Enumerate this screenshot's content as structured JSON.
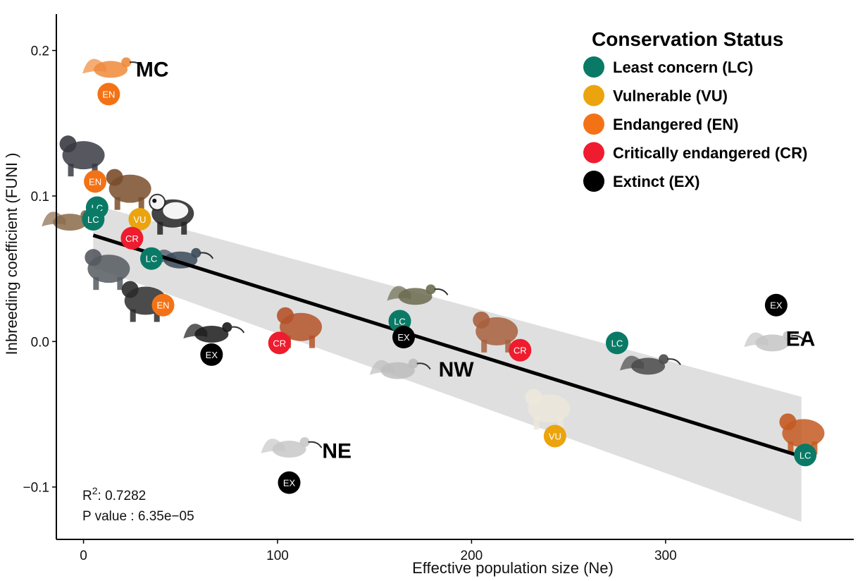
{
  "chart_data": {
    "type": "scatter",
    "title": "",
    "xlabel": "Effective population size (Ne)",
    "ylabel": "Inbreeding coefficient (FUNI )",
    "xlim": [
      -14,
      397
    ],
    "ylim": [
      -0.136,
      0.225
    ],
    "x_ticks": [
      0,
      100,
      200,
      300
    ],
    "y_ticks": [
      -0.1,
      0.0,
      0.1,
      0.2
    ],
    "x_tick_labels": [
      "0",
      "100",
      "200",
      "300"
    ],
    "y_tick_labels": [
      "−0.1",
      "0.0",
      "0.1",
      "0.2"
    ],
    "regression": {
      "x_start": 5,
      "y_start": 0.073,
      "x_end": 370,
      "y_end": -0.079
    },
    "confidence_band": {
      "x": [
        5,
        370
      ],
      "upper": [
        0.094,
        -0.038
      ],
      "lower": [
        0.051,
        -0.124
      ]
    },
    "stats": {
      "r2_label": "R",
      "r2_sup": "2",
      "r2_text": ": 0.7282",
      "p_text": "P value : 6.35e−05"
    },
    "legend": {
      "title": "Conservation Status",
      "entries": [
        {
          "code": "LC",
          "label": "Least concern (LC)",
          "color": "#0a7a66"
        },
        {
          "code": "VU",
          "label": "Vulnerable (VU)",
          "color": "#eba40e"
        },
        {
          "code": "EN",
          "label": "Endangered (EN)",
          "color": "#f47216"
        },
        {
          "code": "CR",
          "label": "Critically endangered (CR)",
          "color": "#ee1c2e"
        },
        {
          "code": "EX",
          "label": "Extinct (EX)",
          "color": "#000000"
        }
      ]
    },
    "points": [
      {
        "x": 13,
        "y": 0.17,
        "status": "EN"
      },
      {
        "x": 6,
        "y": 0.11,
        "status": "EN"
      },
      {
        "x": 7,
        "y": 0.092,
        "status": "LC"
      },
      {
        "x": 5,
        "y": 0.084,
        "status": "LC"
      },
      {
        "x": 29,
        "y": 0.084,
        "status": "VU"
      },
      {
        "x": 25,
        "y": 0.071,
        "status": "CR"
      },
      {
        "x": 35,
        "y": 0.057,
        "status": "LC"
      },
      {
        "x": 41,
        "y": 0.025,
        "status": "EN"
      },
      {
        "x": 66,
        "y": -0.009,
        "status": "EX"
      },
      {
        "x": 101,
        "y": -0.001,
        "status": "CR"
      },
      {
        "x": 106,
        "y": -0.097,
        "status": "EX"
      },
      {
        "x": 163,
        "y": 0.014,
        "status": "LC"
      },
      {
        "x": 165,
        "y": 0.003,
        "status": "EX"
      },
      {
        "x": 225,
        "y": -0.006,
        "status": "CR"
      },
      {
        "x": 243,
        "y": -0.065,
        "status": "VU"
      },
      {
        "x": 275,
        "y": -0.001,
        "status": "LC"
      },
      {
        "x": 357,
        "y": 0.025,
        "status": "EX"
      },
      {
        "x": 372,
        "y": -0.078,
        "status": "LC"
      }
    ],
    "region_labels": [
      {
        "text": "MC",
        "x": 27,
        "y": 0.182
      },
      {
        "text": "NW",
        "x": 183,
        "y": -0.024
      },
      {
        "text": "NE",
        "x": 123,
        "y": -0.08
      },
      {
        "text": "EA",
        "x": 362,
        "y": -0.003
      }
    ],
    "animal_icons": [
      {
        "name": "ibis-icon",
        "x": 14,
        "y": 0.187
      },
      {
        "name": "chimpanzee-icon",
        "x": 0,
        "y": 0.128
      },
      {
        "name": "bear-icon",
        "x": 24,
        "y": 0.105
      },
      {
        "name": "panda-icon",
        "x": 46,
        "y": 0.088
      },
      {
        "name": "sparrow-icon",
        "x": -7,
        "y": 0.082
      },
      {
        "name": "gorilla-icon",
        "x": 13,
        "y": 0.05
      },
      {
        "name": "chicken-icon",
        "x": 50,
        "y": 0.056
      },
      {
        "name": "gibbon-icon",
        "x": 32,
        "y": 0.028
      },
      {
        "name": "magpie-icon",
        "x": 66,
        "y": 0.005
      },
      {
        "name": "orangutan-icon",
        "x": 112,
        "y": 0.01
      },
      {
        "name": "mallard-icon",
        "x": 171,
        "y": 0.031
      },
      {
        "name": "ibis-nw-icon",
        "x": 162,
        "y": -0.02
      },
      {
        "name": "ibis-ne-icon",
        "x": 106,
        "y": -0.074
      },
      {
        "name": "orangutan-male-icon",
        "x": 213,
        "y": 0.007
      },
      {
        "name": "polar-bear-icon",
        "x": 240,
        "y": -0.046
      },
      {
        "name": "shrike-icon",
        "x": 291,
        "y": -0.017
      },
      {
        "name": "ibis-ea-icon",
        "x": 355,
        "y": -0.001
      },
      {
        "name": "fox-icon",
        "x": 371,
        "y": -0.063
      }
    ]
  }
}
